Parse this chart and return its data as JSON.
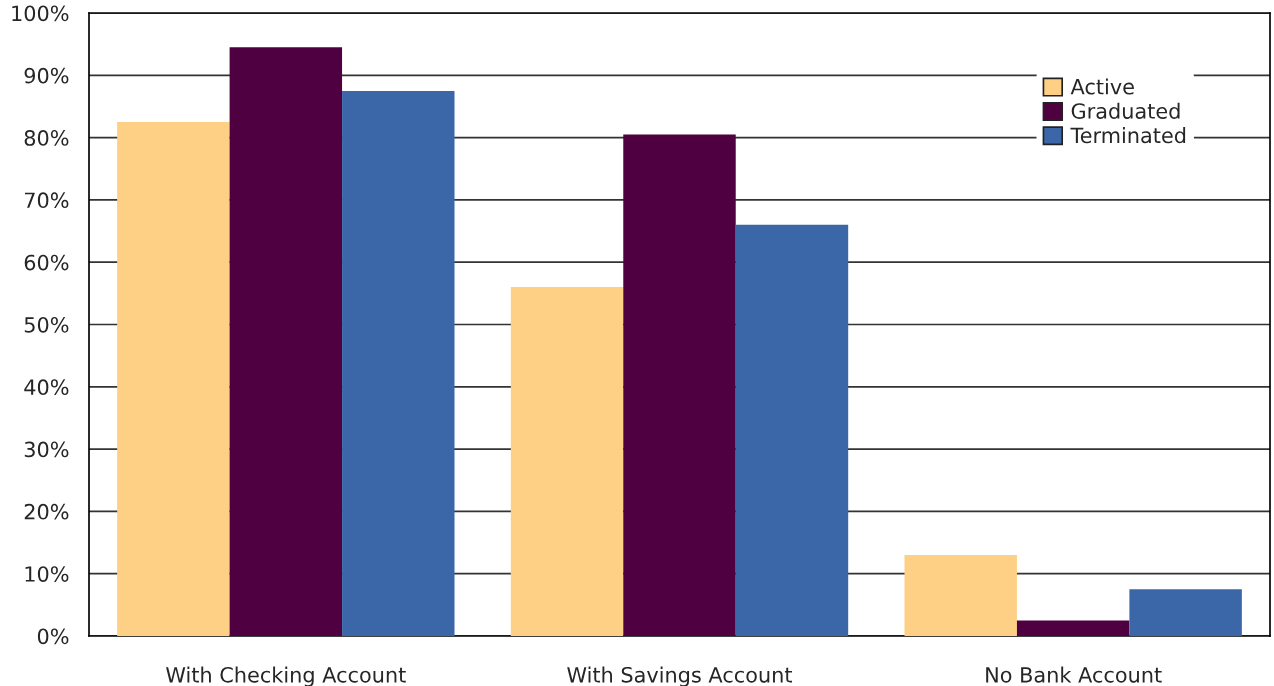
{
  "chart_data": {
    "type": "bar",
    "categories": [
      "With Checking Account",
      "With Savings Account",
      "No Bank Account"
    ],
    "series": [
      {
        "name": "Active",
        "color": "#fdd085",
        "values": [
          82.5,
          56,
          13
        ]
      },
      {
        "name": "Graduated",
        "color": "#4f0040",
        "values": [
          94.5,
          80.5,
          2.5
        ]
      },
      {
        "name": "Terminated",
        "color": "#3b67a9",
        "values": [
          87.5,
          66,
          7.5
        ]
      }
    ],
    "ylim": [
      0,
      100
    ],
    "yticks": [
      {
        "value": 0,
        "label": "0%"
      },
      {
        "value": 10,
        "label": "10%"
      },
      {
        "value": 20,
        "label": "20%"
      },
      {
        "value": 30,
        "label": "30%"
      },
      {
        "value": 40,
        "label": "40%"
      },
      {
        "value": 50,
        "label": "50%"
      },
      {
        "value": 60,
        "label": "60%"
      },
      {
        "value": 70,
        "label": "70%"
      },
      {
        "value": 80,
        "label": "80%"
      },
      {
        "value": 90,
        "label": "90%"
      },
      {
        "value": 100,
        "label": "100%"
      }
    ],
    "grid": "y",
    "legend": "top right"
  }
}
